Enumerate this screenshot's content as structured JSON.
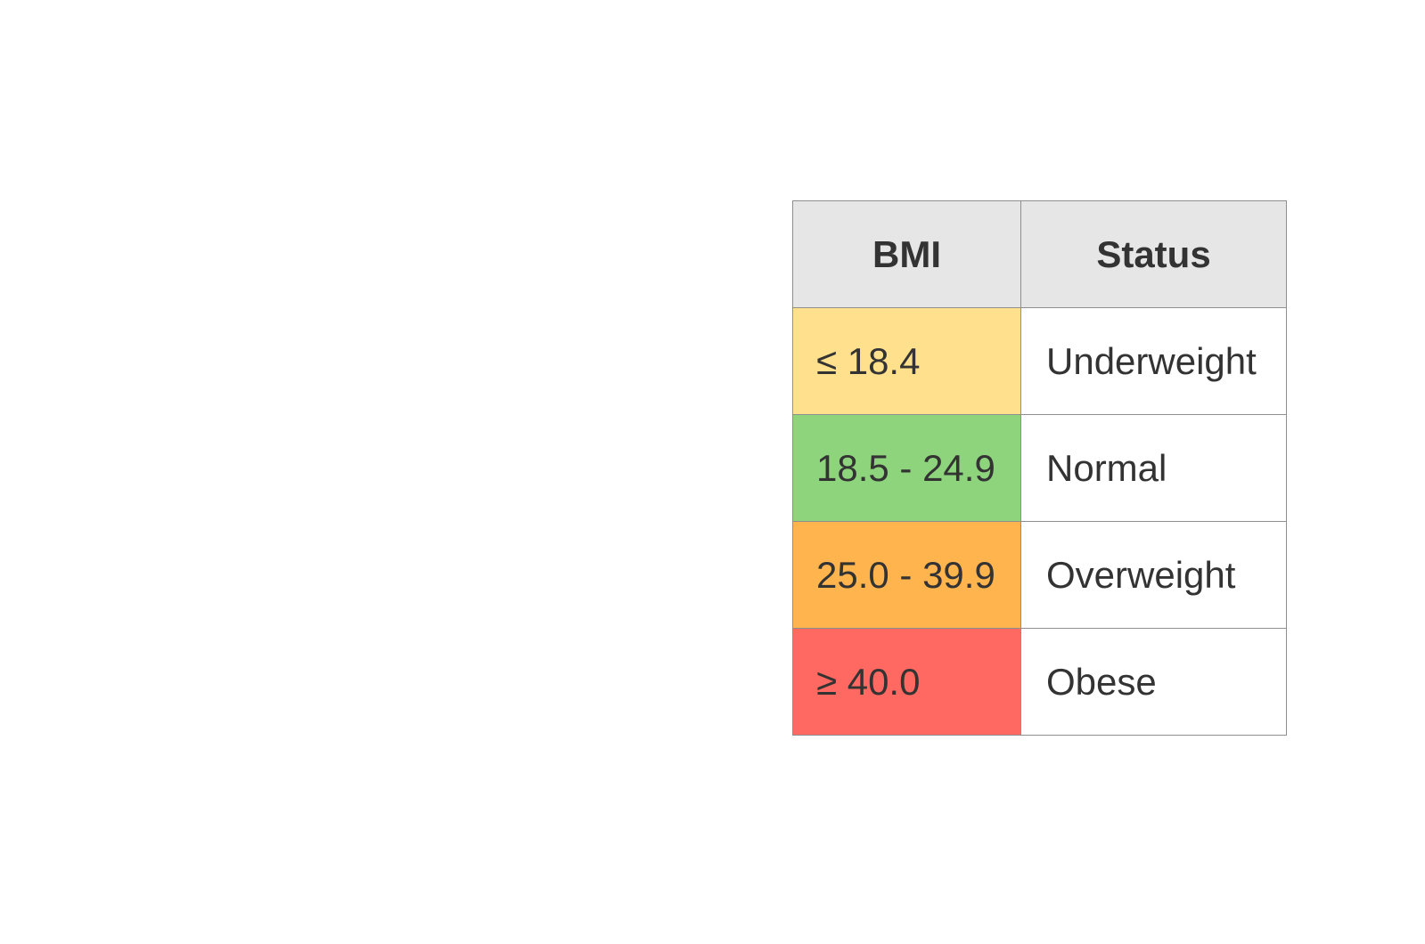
{
  "table": {
    "headers": {
      "bmi": "BMI",
      "status": "Status"
    },
    "rows": [
      {
        "bmi": "≤ 18.4",
        "status": "Underweight",
        "color": "#ffe08c"
      },
      {
        "bmi": "18.5 - 24.9",
        "status": "Normal",
        "color": "#8dd47c"
      },
      {
        "bmi": "25.0 - 39.9",
        "status": "Overweight",
        "color": "#ffb44d"
      },
      {
        "bmi": "≥ 40.0",
        "status": "Obese",
        "color": "#ff6961"
      }
    ]
  }
}
